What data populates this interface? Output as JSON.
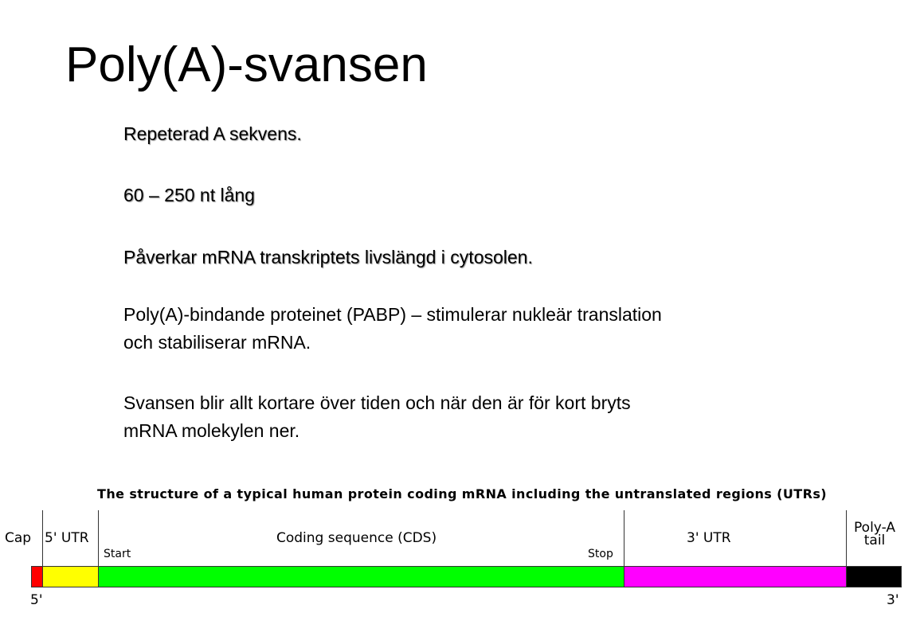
{
  "slide": {
    "title": "Poly(A)-svansen",
    "paragraphs": [
      [
        "Repeterad A sekvens."
      ],
      [
        "60 – 250 nt lång"
      ],
      [
        "Påverkar mRNA transkriptets livslängd i cytosolen."
      ],
      [
        "Poly(A)-bindande proteinet (PABP) – stimulerar nukleär translation",
        "och stabiliserar mRNA."
      ],
      [
        "Svansen blir allt kortare över tiden och när den är för kort bryts",
        "mRNA molekylen ner."
      ]
    ]
  },
  "diagram": {
    "title": "The structure of a typical human protein coding mRNA including the untranslated regions (UTRs)",
    "regions": [
      {
        "label": "Cap",
        "color": "#ff0000"
      },
      {
        "label": "5' UTR",
        "color": "#ffff00"
      },
      {
        "label": "Coding sequence (CDS)",
        "color": "#00ff00"
      },
      {
        "label": "3' UTR",
        "color": "#ff00ff"
      },
      {
        "label_line1": "Poly-A",
        "label_line2": "tail",
        "color": "#000000"
      }
    ],
    "start_label": "Start",
    "stop_label": "Stop",
    "five_prime": "5'",
    "three_prime": "3'"
  }
}
